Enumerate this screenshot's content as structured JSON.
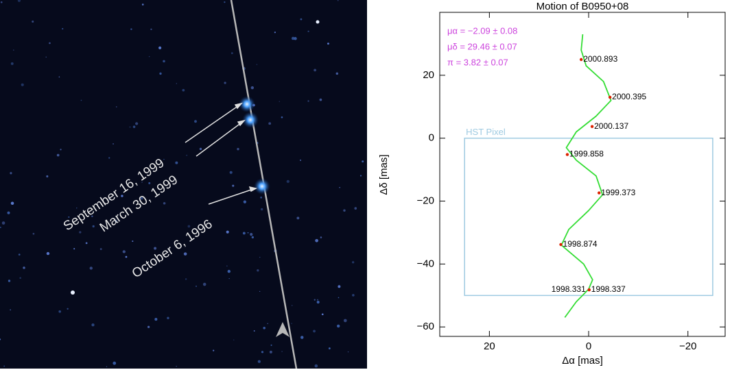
{
  "image": {
    "labels": [
      "September 16, 1999",
      "March 30, 1999",
      "October 6, 1996"
    ]
  },
  "chart_data": {
    "type": "line",
    "title": "Motion of B0950+08",
    "x_label": "Δα [mas]",
    "y_label": "Δδ [mas]",
    "xlim": [
      30,
      -27.5
    ],
    "ylim": [
      -63,
      40
    ],
    "xticks": [
      20,
      0,
      {
        "value": -20,
        "label": "−20"
      }
    ],
    "yticks": [
      {
        "value": -60,
        "label": "−60"
      },
      {
        "value": -40,
        "label": "−40"
      },
      {
        "value": -20,
        "label": "−20"
      },
      0,
      20
    ],
    "annotations": [
      "μα = −2.09 ± 0.08",
      "μδ = 29.46 ± 0.07",
      "π = 3.82 ± 0.07"
    ],
    "annotation_color": "#cc44dd",
    "box": {
      "label": "HST Pixel",
      "color": "#9ecae1",
      "x": [
        25,
        -25
      ],
      "y": [
        0,
        -50
      ]
    },
    "curve": {
      "color": "#33dd33",
      "x": [
        4.8,
        2.5,
        0,
        -0.8,
        1,
        5.5,
        4,
        0,
        -2.8,
        -1.5,
        2.5,
        4.5,
        2.5,
        -1.5,
        -4.5,
        -3,
        0.5,
        1.5,
        1.2
      ],
      "y": [
        -57,
        -52,
        -48,
        -45,
        -40,
        -34,
        -29,
        -23,
        -18,
        -12,
        -7,
        -3,
        2,
        7,
        12,
        18,
        23,
        28,
        33
      ]
    },
    "points": {
      "color": "#dd2200",
      "labels": [
        "2000.893",
        "2000.395",
        "2000.137",
        "1999.858",
        "1999.373",
        "1998.874",
        "1998.331",
        "1998.337"
      ],
      "x": [
        1.5,
        -4.3,
        -0.7,
        4.3,
        -2.1,
        5.6,
        -0.1,
        -0.1
      ],
      "y": [
        25,
        13,
        3.7,
        -5.2,
        -17.4,
        -33.8,
        -48.2,
        -48.2
      ]
    }
  }
}
